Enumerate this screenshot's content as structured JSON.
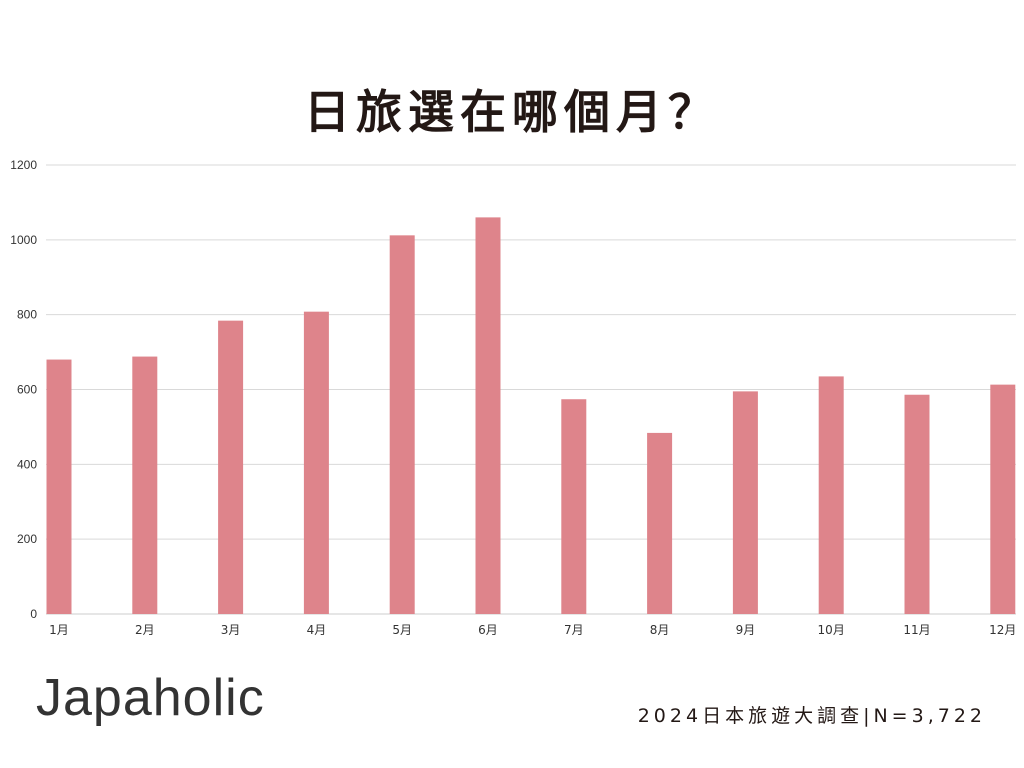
{
  "page": {
    "title": "日旅選在哪個月？",
    "brand": "Japaholic",
    "source": "2024日本旅遊大調查|N=3,722"
  },
  "colors": {
    "bar": "#de848b",
    "grid": "#d9d9d9",
    "axis": "#cccccc",
    "text": "#231815"
  },
  "chart_data": {
    "type": "bar",
    "title": "日旅選在哪個月？",
    "categories": [
      "1月",
      "2月",
      "3月",
      "4月",
      "5月",
      "6月",
      "7月",
      "8月",
      "9月",
      "10月",
      "11月",
      "12月"
    ],
    "values": [
      680,
      688,
      784,
      808,
      1012,
      1060,
      574,
      484,
      595,
      635,
      586,
      613
    ],
    "ylim": [
      0,
      1200
    ],
    "yticks": [
      0,
      200,
      400,
      600,
      800,
      1000,
      1200
    ],
    "grid": true,
    "legend": "none"
  }
}
